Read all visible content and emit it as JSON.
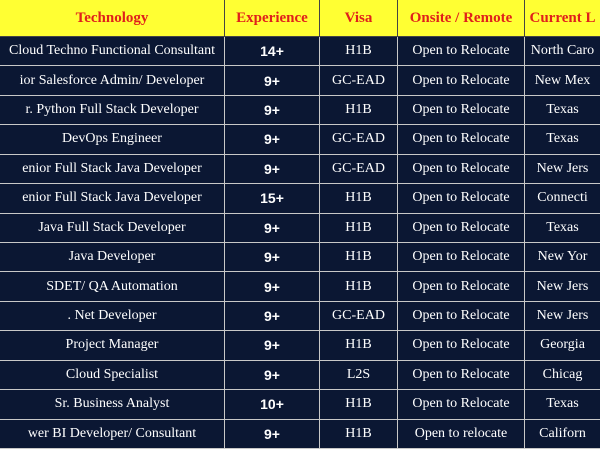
{
  "table": {
    "header": [
      "Technology",
      "Experience",
      "Visa",
      "Onsite / Remote",
      "Current L"
    ],
    "rows": [
      [
        "Cloud Techno Functional Consultant",
        "14+",
        "H1B",
        "Open to Relocate",
        "North Caro"
      ],
      [
        "ior Salesforce Admin/ Developer",
        "9+",
        "GC-EAD",
        "Open to Relocate",
        "New Mex"
      ],
      [
        "r. Python Full Stack Developer",
        "9+",
        "H1B",
        "Open to Relocate",
        "Texas"
      ],
      [
        "DevOps Engineer",
        "9+",
        "GC-EAD",
        "Open to Relocate",
        "Texas"
      ],
      [
        "enior Full Stack Java Developer",
        "9+",
        "GC-EAD",
        "Open to Relocate",
        "New Jers"
      ],
      [
        "enior Full Stack Java Developer",
        "15+",
        "H1B",
        "Open to Relocate",
        "Connecti"
      ],
      [
        "Java Full Stack Developer",
        "9+",
        "H1B",
        "Open to Relocate",
        "Texas"
      ],
      [
        "Java Developer",
        "9+",
        "H1B",
        "Open to Relocate",
        "New Yor"
      ],
      [
        "SDET/ QA Automation",
        "9+",
        "H1B",
        "Open to Relocate",
        "New Jers"
      ],
      [
        ". Net Developer",
        "9+",
        "GC-EAD",
        "Open to Relocate",
        "New Jers"
      ],
      [
        "Project Manager",
        "9+",
        "H1B",
        "Open to Relocate",
        "Georgia"
      ],
      [
        "Cloud Specialist",
        "9+",
        "L2S",
        "Open to Relocate",
        "Chicag"
      ],
      [
        "Sr. Business Analyst",
        "10+",
        "H1B",
        "Open to Relocate",
        "Texas"
      ],
      [
        "wer BI Developer/ Consultant",
        "9+",
        "H1B",
        "Open to relocate",
        "Californ"
      ]
    ]
  }
}
